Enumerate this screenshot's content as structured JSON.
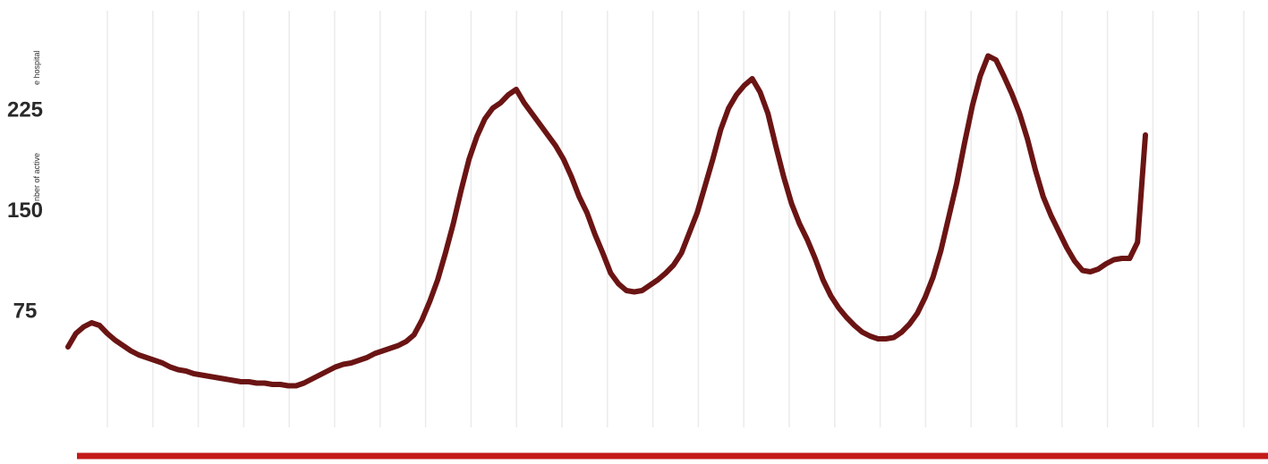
{
  "chart_data": {
    "type": "line",
    "title": "",
    "xlabel": "",
    "ylabel_parts": [
      "nber of active",
      "e hospital"
    ],
    "ylim": [
      0,
      300
    ],
    "yticks": [
      {
        "value": 75,
        "label": "75"
      },
      {
        "value": 150,
        "label": "150"
      },
      {
        "value": 225,
        "label": "225"
      }
    ],
    "grid": true,
    "series": [
      {
        "color": "#6b1414",
        "y": [
          48,
          58,
          63,
          66,
          64,
          58,
          53,
          49,
          45,
          42,
          40,
          38,
          36,
          33,
          31,
          30,
          28,
          27,
          26,
          25,
          24,
          23,
          22,
          22,
          21,
          21,
          20,
          20,
          19,
          19,
          21,
          24,
          27,
          30,
          33,
          35,
          36,
          38,
          40,
          43,
          45,
          47,
          49,
          52,
          57,
          68,
          82,
          98,
          118,
          140,
          165,
          188,
          205,
          218,
          226,
          230,
          236,
          240,
          230,
          222,
          214,
          206,
          198,
          188,
          175,
          160,
          148,
          132,
          118,
          103,
          95,
          90,
          89,
          90,
          94,
          98,
          103,
          109,
          118,
          133,
          148,
          168,
          188,
          210,
          226,
          236,
          243,
          248,
          238,
          222,
          198,
          175,
          155,
          140,
          128,
          114,
          98,
          86,
          77,
          70,
          64,
          59,
          56,
          54,
          54,
          55,
          59,
          65,
          73,
          85,
          100,
          120,
          145,
          170,
          200,
          228,
          250,
          265,
          262,
          250,
          237,
          222,
          203,
          180,
          160,
          146,
          134,
          122,
          112,
          105,
          104,
          106,
          110,
          113,
          114,
          114,
          126,
          206
        ]
      }
    ],
    "colors": {
      "line": "#6b1414",
      "baseline": "#c41a1a",
      "grid": "#ebebeb"
    }
  }
}
